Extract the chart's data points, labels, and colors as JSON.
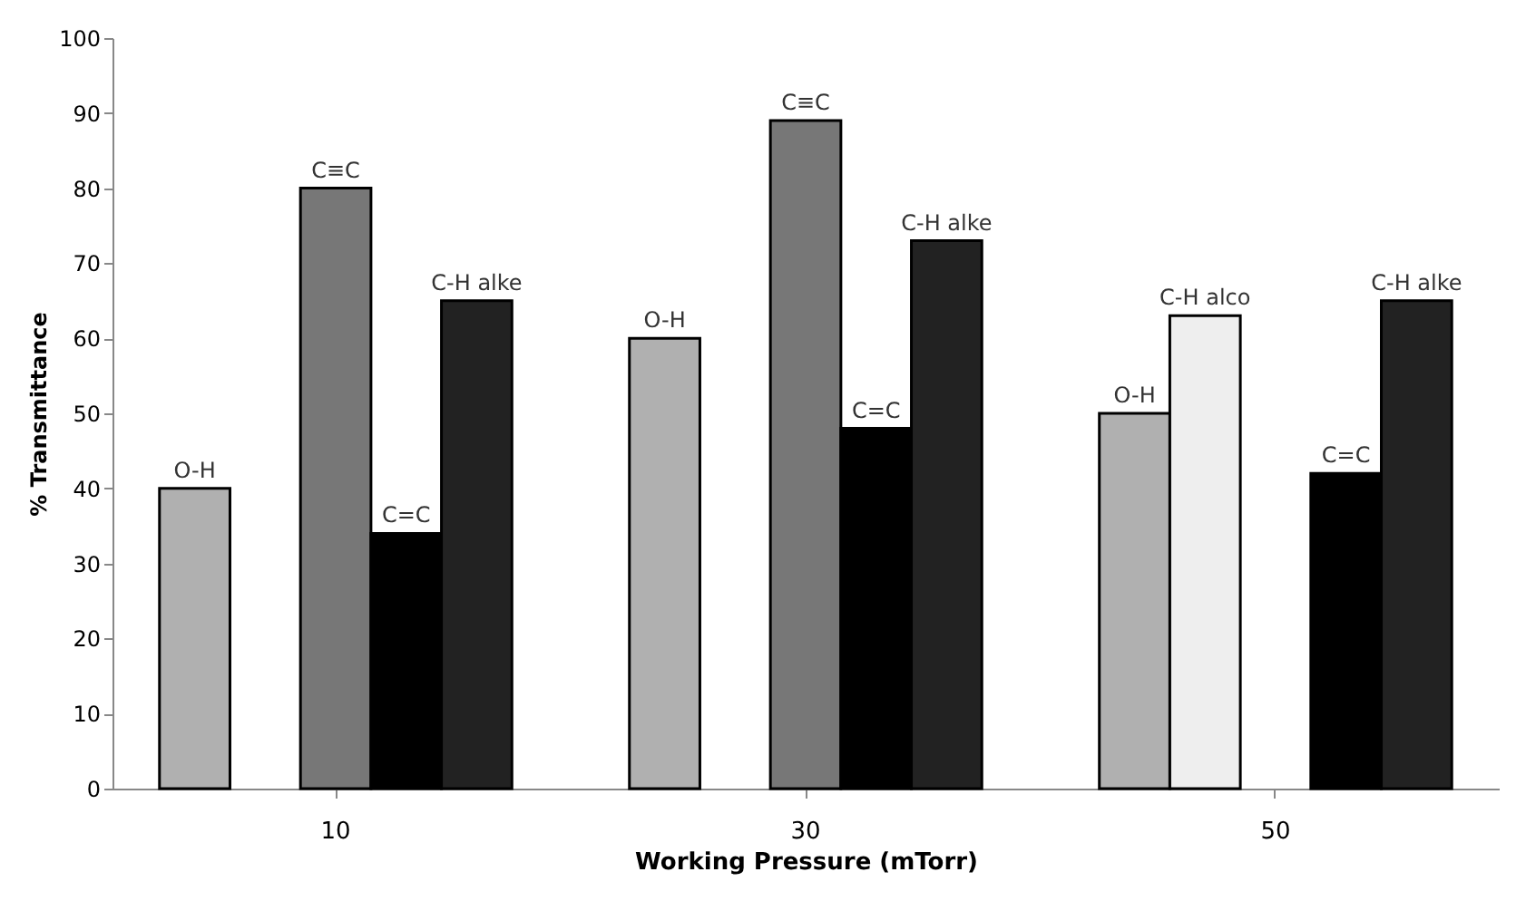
{
  "chart_data": {
    "type": "bar",
    "xlabel": "Working Pressure (mTorr)",
    "ylabel": "% Transmittance",
    "categories": [
      "10",
      "30",
      "50"
    ],
    "series": [
      {
        "name": "O-H",
        "color": "#b0b0b0",
        "values": [
          40,
          60,
          50
        ]
      },
      {
        "name": "C-H alco",
        "color": "#eeeeee",
        "values": [
          null,
          null,
          63
        ]
      },
      {
        "name": "C≡C",
        "color": "#777777",
        "values": [
          80,
          89,
          null
        ]
      },
      {
        "name": "C=C",
        "color": "#000000",
        "values": [
          34,
          48,
          42
        ]
      },
      {
        "name": "C-H alke",
        "color": "#222222",
        "values": [
          65,
          73,
          65
        ]
      }
    ],
    "ylim": [
      0,
      100
    ],
    "yticks": [
      0,
      10,
      20,
      30,
      40,
      50,
      60,
      70,
      80,
      90,
      100
    ],
    "grid": false,
    "legend": false
  }
}
